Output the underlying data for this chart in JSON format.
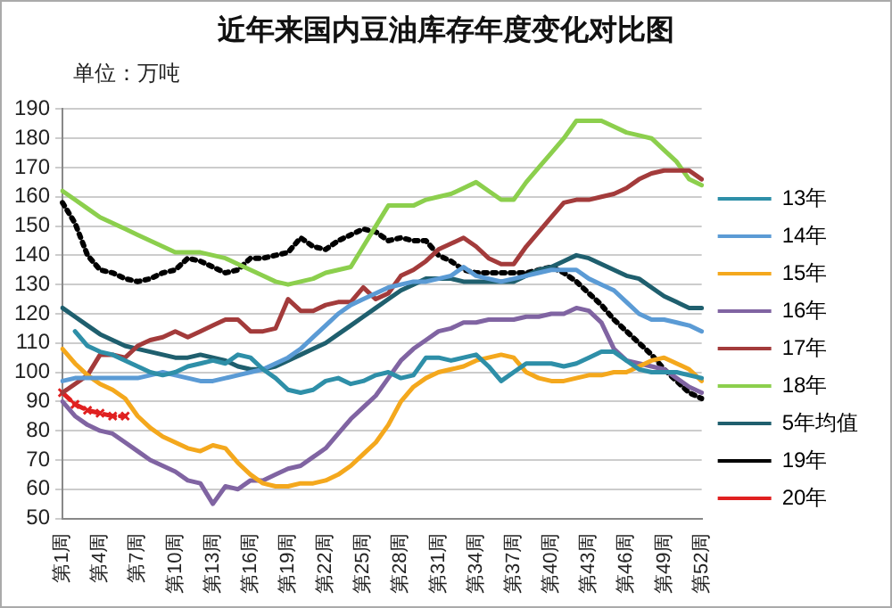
{
  "chart_data": {
    "type": "line",
    "title": "近年来国内豆油库存年度变化对比图",
    "ylabel": "单位：万吨",
    "categories": [
      "第1周",
      null,
      null,
      "第4周",
      null,
      null,
      "第7周",
      null,
      null,
      "第10周",
      null,
      null,
      "第13周",
      null,
      null,
      "第16周",
      null,
      null,
      "第19周",
      null,
      null,
      "第22周",
      null,
      null,
      "第25周",
      null,
      null,
      "第28周",
      null,
      null,
      "第31周",
      null,
      null,
      "第34周",
      null,
      null,
      "第37周",
      null,
      null,
      "第40周",
      null,
      null,
      "第43周",
      null,
      null,
      "第46周",
      null,
      null,
      "第49周",
      null,
      null,
      "第52周"
    ],
    "ylim": [
      50,
      190
    ],
    "yticks": [
      50,
      60,
      70,
      80,
      90,
      100,
      110,
      120,
      130,
      140,
      150,
      160,
      170,
      180,
      190
    ],
    "grid": "y",
    "legend": "right",
    "marker": "none",
    "line_style": "solid",
    "series": [
      {
        "name": "13年",
        "color": "#2e8fa8",
        "values": [
          null,
          114,
          109,
          107,
          106,
          104,
          102,
          100,
          99,
          100,
          102,
          103,
          104,
          103,
          106,
          105,
          101,
          98,
          94,
          93,
          94,
          97,
          98,
          96,
          97,
          99,
          100,
          98,
          99,
          105,
          105,
          104,
          105,
          106,
          102,
          97,
          100,
          103,
          103,
          103,
          102,
          103,
          105,
          107,
          107,
          104,
          101,
          100,
          100,
          100,
          99,
          98
        ]
      },
      {
        "name": "14年",
        "color": "#5b9bd5",
        "values": [
          97,
          98,
          98,
          98,
          98,
          98,
          98,
          99,
          100,
          99,
          98,
          97,
          97,
          98,
          99,
          100,
          101,
          103,
          105,
          108,
          112,
          116,
          120,
          123,
          125,
          127,
          129,
          130,
          131,
          131,
          132,
          133,
          136,
          133,
          132,
          131,
          132,
          133,
          134,
          135,
          135,
          135,
          132,
          130,
          128,
          124,
          120,
          118,
          118,
          117,
          116,
          114
        ]
      },
      {
        "name": "15年",
        "color": "#f4a81d",
        "values": [
          108,
          103,
          99,
          96,
          94,
          91,
          85,
          81,
          78,
          76,
          74,
          73,
          75,
          74,
          69,
          65,
          62,
          61,
          61,
          62,
          62,
          63,
          65,
          68,
          72,
          76,
          82,
          90,
          95,
          98,
          100,
          101,
          102,
          104,
          105,
          106,
          105,
          100,
          98,
          97,
          97,
          98,
          99,
          99,
          100,
          100,
          102,
          104,
          105,
          103,
          101,
          97
        ]
      },
      {
        "name": "16年",
        "color": "#8064a2",
        "values": [
          90,
          85,
          82,
          80,
          79,
          76,
          73,
          70,
          68,
          66,
          63,
          62,
          55,
          61,
          60,
          63,
          63,
          65,
          67,
          68,
          71,
          74,
          79,
          84,
          88,
          92,
          98,
          104,
          108,
          111,
          114,
          115,
          117,
          117,
          118,
          118,
          118,
          119,
          119,
          120,
          120,
          122,
          121,
          117,
          108,
          104,
          103,
          102,
          101,
          98,
          95,
          93
        ]
      },
      {
        "name": "17年",
        "color": "#a33b3b",
        "values": [
          93,
          96,
          99,
          106,
          106,
          105,
          109,
          111,
          112,
          114,
          112,
          114,
          116,
          118,
          118,
          114,
          114,
          115,
          125,
          121,
          121,
          123,
          124,
          124,
          129,
          125,
          127,
          133,
          135,
          138,
          142,
          144,
          146,
          143,
          139,
          137,
          137,
          143,
          148,
          153,
          158,
          159,
          159,
          160,
          161,
          163,
          166,
          168,
          169,
          169,
          169,
          166
        ]
      },
      {
        "name": "18年",
        "color": "#8ccf4d",
        "values": [
          162,
          159,
          156,
          153,
          151,
          149,
          147,
          145,
          143,
          141,
          141,
          141,
          140,
          139,
          137,
          135,
          133,
          131,
          130,
          131,
          132,
          134,
          135,
          136,
          143,
          150,
          157,
          157,
          157,
          159,
          160,
          161,
          163,
          165,
          162,
          159,
          159,
          165,
          170,
          175,
          180,
          186,
          186,
          186,
          184,
          182,
          181,
          180,
          176,
          172,
          166,
          164
        ]
      },
      {
        "name": "5年均值",
        "color": "#1f5f6e",
        "values": [
          122,
          119,
          116,
          113,
          111,
          109,
          108,
          107,
          106,
          105,
          105,
          106,
          105,
          104,
          102,
          101,
          101,
          102,
          104,
          106,
          108,
          110,
          113,
          116,
          119,
          122,
          125,
          128,
          130,
          132,
          132,
          132,
          131,
          131,
          131,
          131,
          131,
          133,
          135,
          136,
          138,
          140,
          139,
          137,
          135,
          133,
          132,
          129,
          126,
          124,
          122,
          122
        ]
      },
      {
        "name": "19年",
        "color": "#000000",
        "line_style": "dotted",
        "values": [
          158,
          151,
          140,
          135,
          134,
          132,
          131,
          132,
          134,
          135,
          139,
          138,
          136,
          134,
          135,
          139,
          139,
          140,
          141,
          146,
          143,
          142,
          145,
          147,
          149,
          148,
          145,
          146,
          145,
          145,
          140,
          138,
          135,
          134,
          134,
          134,
          134,
          134,
          135,
          136,
          134,
          131,
          127,
          123,
          118,
          114,
          110,
          106,
          101,
          97,
          93,
          91
        ]
      },
      {
        "name": "20年",
        "color": "#e02020",
        "line_style": "dashed",
        "marker": "cross",
        "values": [
          93,
          89,
          87,
          86,
          85,
          85,
          null,
          null,
          null,
          null,
          null,
          null,
          null,
          null,
          null,
          null,
          null,
          null,
          null,
          null,
          null,
          null,
          null,
          null,
          null,
          null,
          null,
          null,
          null,
          null,
          null,
          null,
          null,
          null,
          null,
          null,
          null,
          null,
          null,
          null,
          null,
          null,
          null,
          null,
          null,
          null,
          null,
          null,
          null,
          null,
          null,
          null
        ]
      }
    ]
  }
}
